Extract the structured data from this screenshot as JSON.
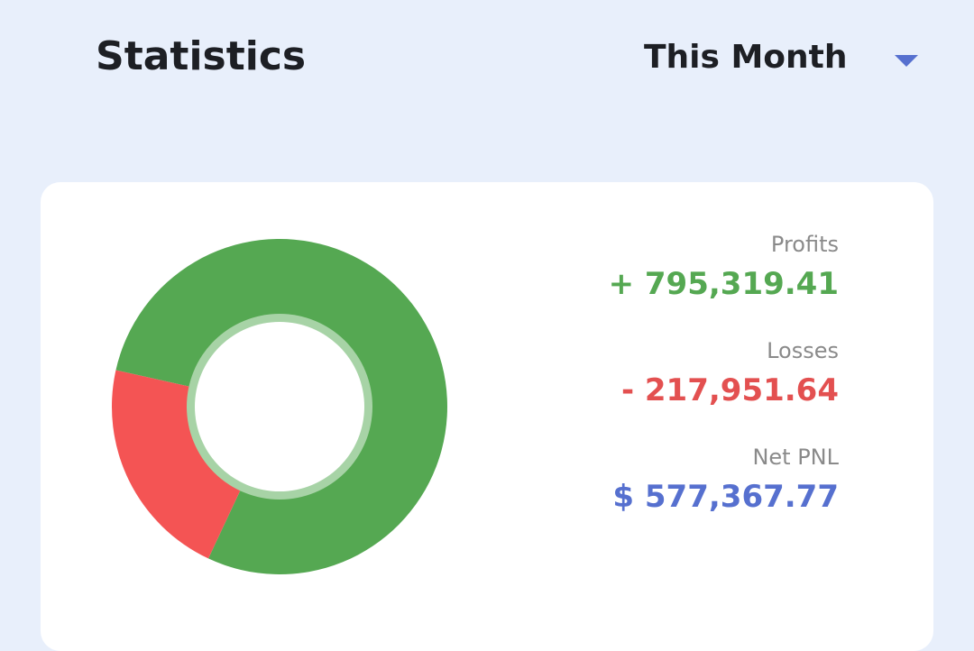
{
  "header": {
    "title": "Statistics",
    "period": {
      "selected": "This Month",
      "icon": "caret-down-icon"
    }
  },
  "colors": {
    "background": "#e8effb",
    "profit": "#55a852",
    "loss": "#f45454",
    "net": "#5670cf",
    "inner_ring": "#a7d3a6"
  },
  "stats": {
    "profits": {
      "label": "Profits",
      "value": "+ 795,319.41"
    },
    "losses": {
      "label": "Losses",
      "value": "- 217,951.64"
    },
    "net_pnl": {
      "label": "Net PNL",
      "value": "$ 577,367.77"
    }
  },
  "chart_data": {
    "type": "pie",
    "categories": [
      "Profits",
      "Losses"
    ],
    "values": [
      795319.41,
      217951.64
    ],
    "colors": [
      "#55a852",
      "#f45454"
    ],
    "donut": true
  }
}
